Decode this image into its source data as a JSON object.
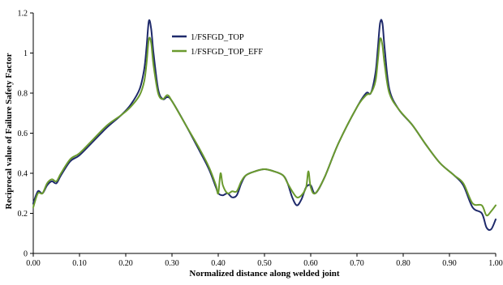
{
  "chart_data": {
    "type": "line",
    "xlabel": "Normalized distance along welded joint",
    "ylabel": "Reciprocal value of Failure Safety Factor",
    "xlim": [
      0,
      1
    ],
    "ylim": [
      0,
      1.2
    ],
    "x_ticks": [
      "0.00",
      "0.10",
      "0.20",
      "0.30",
      "0.40",
      "0.50",
      "0.60",
      "0.70",
      "0.80",
      "0.90",
      "1.00"
    ],
    "y_ticks": [
      "0",
      "0.2",
      "0.4",
      "0.6",
      "0.8",
      "1",
      "1.2"
    ],
    "grid": false,
    "legend_position": "top-center",
    "series": [
      {
        "name": "1/FSFGD_TOP",
        "color": "#1f2a6b",
        "points": [
          [
            0.0,
            0.25
          ],
          [
            0.01,
            0.31
          ],
          [
            0.02,
            0.3
          ],
          [
            0.03,
            0.34
          ],
          [
            0.04,
            0.36
          ],
          [
            0.05,
            0.35
          ],
          [
            0.06,
            0.39
          ],
          [
            0.08,
            0.46
          ],
          [
            0.1,
            0.49
          ],
          [
            0.13,
            0.56
          ],
          [
            0.16,
            0.63
          ],
          [
            0.19,
            0.69
          ],
          [
            0.21,
            0.74
          ],
          [
            0.23,
            0.82
          ],
          [
            0.24,
            0.92
          ],
          [
            0.245,
            1.03
          ],
          [
            0.25,
            1.16
          ],
          [
            0.255,
            1.12
          ],
          [
            0.26,
            1.0
          ],
          [
            0.27,
            0.82
          ],
          [
            0.28,
            0.77
          ],
          [
            0.29,
            0.78
          ],
          [
            0.3,
            0.76
          ],
          [
            0.33,
            0.64
          ],
          [
            0.36,
            0.51
          ],
          [
            0.38,
            0.42
          ],
          [
            0.395,
            0.33
          ],
          [
            0.4,
            0.3
          ],
          [
            0.41,
            0.29
          ],
          [
            0.42,
            0.3
          ],
          [
            0.43,
            0.28
          ],
          [
            0.44,
            0.29
          ],
          [
            0.45,
            0.35
          ],
          [
            0.46,
            0.39
          ],
          [
            0.48,
            0.41
          ],
          [
            0.5,
            0.42
          ],
          [
            0.52,
            0.41
          ],
          [
            0.54,
            0.39
          ],
          [
            0.55,
            0.35
          ],
          [
            0.56,
            0.28
          ],
          [
            0.57,
            0.24
          ],
          [
            0.58,
            0.27
          ],
          [
            0.59,
            0.33
          ],
          [
            0.6,
            0.34
          ],
          [
            0.61,
            0.3
          ],
          [
            0.63,
            0.38
          ],
          [
            0.66,
            0.55
          ],
          [
            0.7,
            0.73
          ],
          [
            0.72,
            0.8
          ],
          [
            0.73,
            0.8
          ],
          [
            0.74,
            0.9
          ],
          [
            0.745,
            1.02
          ],
          [
            0.75,
            1.15
          ],
          [
            0.755,
            1.15
          ],
          [
            0.76,
            1.02
          ],
          [
            0.77,
            0.82
          ],
          [
            0.79,
            0.72
          ],
          [
            0.82,
            0.64
          ],
          [
            0.85,
            0.54
          ],
          [
            0.88,
            0.45
          ],
          [
            0.91,
            0.39
          ],
          [
            0.93,
            0.34
          ],
          [
            0.95,
            0.23
          ],
          [
            0.97,
            0.2
          ],
          [
            0.98,
            0.13
          ],
          [
            0.99,
            0.12
          ],
          [
            1.0,
            0.17
          ]
        ]
      },
      {
        "name": "1/FSFGD_TOP_EFF",
        "color": "#6a9a2e",
        "points": [
          [
            0.0,
            0.23
          ],
          [
            0.01,
            0.3
          ],
          [
            0.02,
            0.3
          ],
          [
            0.03,
            0.35
          ],
          [
            0.04,
            0.37
          ],
          [
            0.05,
            0.36
          ],
          [
            0.06,
            0.4
          ],
          [
            0.08,
            0.47
          ],
          [
            0.1,
            0.5
          ],
          [
            0.13,
            0.57
          ],
          [
            0.16,
            0.64
          ],
          [
            0.19,
            0.69
          ],
          [
            0.21,
            0.73
          ],
          [
            0.23,
            0.79
          ],
          [
            0.24,
            0.86
          ],
          [
            0.245,
            0.95
          ],
          [
            0.25,
            1.07
          ],
          [
            0.255,
            1.05
          ],
          [
            0.26,
            0.94
          ],
          [
            0.27,
            0.8
          ],
          [
            0.28,
            0.77
          ],
          [
            0.29,
            0.79
          ],
          [
            0.3,
            0.76
          ],
          [
            0.33,
            0.64
          ],
          [
            0.36,
            0.52
          ],
          [
            0.38,
            0.43
          ],
          [
            0.395,
            0.34
          ],
          [
            0.4,
            0.3
          ],
          [
            0.405,
            0.4
          ],
          [
            0.41,
            0.34
          ],
          [
            0.42,
            0.3
          ],
          [
            0.43,
            0.31
          ],
          [
            0.44,
            0.31
          ],
          [
            0.45,
            0.36
          ],
          [
            0.46,
            0.39
          ],
          [
            0.48,
            0.41
          ],
          [
            0.5,
            0.42
          ],
          [
            0.52,
            0.41
          ],
          [
            0.54,
            0.39
          ],
          [
            0.55,
            0.35
          ],
          [
            0.56,
            0.31
          ],
          [
            0.57,
            0.28
          ],
          [
            0.58,
            0.29
          ],
          [
            0.59,
            0.33
          ],
          [
            0.595,
            0.41
          ],
          [
            0.6,
            0.33
          ],
          [
            0.61,
            0.3
          ],
          [
            0.63,
            0.38
          ],
          [
            0.66,
            0.55
          ],
          [
            0.7,
            0.73
          ],
          [
            0.72,
            0.79
          ],
          [
            0.73,
            0.8
          ],
          [
            0.74,
            0.86
          ],
          [
            0.745,
            0.96
          ],
          [
            0.75,
            1.07
          ],
          [
            0.755,
            1.04
          ],
          [
            0.76,
            0.94
          ],
          [
            0.77,
            0.8
          ],
          [
            0.79,
            0.72
          ],
          [
            0.82,
            0.64
          ],
          [
            0.85,
            0.54
          ],
          [
            0.88,
            0.45
          ],
          [
            0.91,
            0.39
          ],
          [
            0.93,
            0.35
          ],
          [
            0.95,
            0.25
          ],
          [
            0.97,
            0.24
          ],
          [
            0.98,
            0.19
          ],
          [
            0.99,
            0.21
          ],
          [
            1.0,
            0.24
          ]
        ]
      }
    ]
  }
}
